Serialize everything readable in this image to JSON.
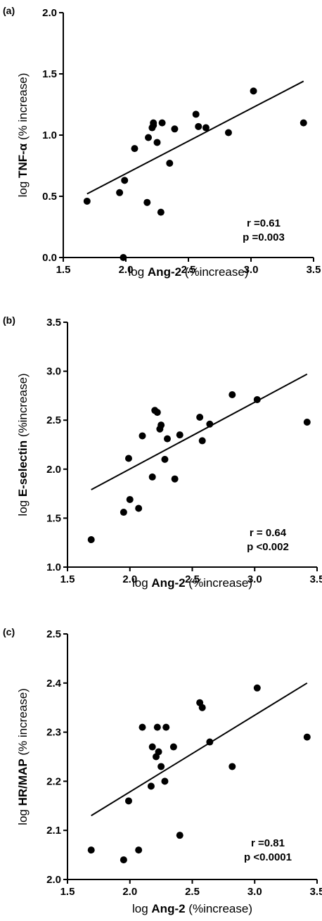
{
  "chart_data": [
    {
      "type": "scatter",
      "panel_label": "(a)",
      "xlabel": {
        "prefix": "log ",
        "bold": "Ang-2",
        "suffix": " (%increase)"
      },
      "ylabel": {
        "prefix": "log ",
        "bold": "TNF-α",
        "suffix": " (% increase)"
      },
      "xlim": [
        1.5,
        3.5
      ],
      "ylim": [
        0.0,
        2.0
      ],
      "xticks": [
        "1.5",
        "2.0",
        "2.5",
        "3.0",
        "3.5"
      ],
      "yticks": [
        "0.0",
        "0.5",
        "1.0",
        "1.5",
        "2.0"
      ],
      "points": [
        [
          1.69,
          0.46
        ],
        [
          1.95,
          0.53
        ],
        [
          1.98,
          0.0
        ],
        [
          1.99,
          0.63
        ],
        [
          2.07,
          0.89
        ],
        [
          2.17,
          0.45
        ],
        [
          2.18,
          0.98
        ],
        [
          2.21,
          1.06
        ],
        [
          2.22,
          1.08
        ],
        [
          2.22,
          1.1
        ],
        [
          2.25,
          0.94
        ],
        [
          2.28,
          0.37
        ],
        [
          2.29,
          1.1
        ],
        [
          2.35,
          0.77
        ],
        [
          2.39,
          1.05
        ],
        [
          2.56,
          1.17
        ],
        [
          2.58,
          1.07
        ],
        [
          2.64,
          1.06
        ],
        [
          2.82,
          1.02
        ],
        [
          3.02,
          1.36
        ],
        [
          3.42,
          1.1
        ]
      ],
      "fit_line": [
        [
          1.69,
          0.52
        ],
        [
          3.42,
          1.44
        ]
      ],
      "stats": [
        "r =0.61",
        "p =0.003"
      ]
    },
    {
      "type": "scatter",
      "panel_label": "(b)",
      "xlabel": {
        "prefix": "log ",
        "bold": "Ang-2",
        "suffix": " (%increase)"
      },
      "ylabel": {
        "prefix": "log ",
        "bold": "E-selectin",
        "suffix": " (%increase)"
      },
      "xlim": [
        1.5,
        3.5
      ],
      "ylim": [
        1.0,
        3.5
      ],
      "xticks": [
        "1.5",
        "2.0",
        "2.5",
        "3.0",
        "3.5"
      ],
      "yticks": [
        "1.0",
        "1.5",
        "2.0",
        "2.5",
        "3.0",
        "3.5"
      ],
      "points": [
        [
          1.69,
          1.28
        ],
        [
          1.95,
          1.56
        ],
        [
          1.99,
          2.11
        ],
        [
          2.0,
          1.69
        ],
        [
          2.07,
          1.6
        ],
        [
          2.1,
          2.34
        ],
        [
          2.18,
          1.92
        ],
        [
          2.2,
          2.6
        ],
        [
          2.22,
          2.58
        ],
        [
          2.24,
          2.41
        ],
        [
          2.25,
          2.45
        ],
        [
          2.28,
          2.1
        ],
        [
          2.3,
          2.31
        ],
        [
          2.36,
          1.9
        ],
        [
          2.4,
          2.35
        ],
        [
          2.56,
          2.53
        ],
        [
          2.58,
          2.29
        ],
        [
          2.64,
          2.46
        ],
        [
          2.82,
          2.76
        ],
        [
          3.02,
          2.71
        ],
        [
          3.42,
          2.48
        ]
      ],
      "fit_line": [
        [
          1.69,
          1.79
        ],
        [
          3.42,
          2.97
        ]
      ],
      "stats": [
        "r = 0.64",
        "p <0.002"
      ]
    },
    {
      "type": "scatter",
      "panel_label": "(c)",
      "xlabel": {
        "prefix": "log ",
        "bold": "Ang-2",
        "suffix": " (%increase)"
      },
      "ylabel": {
        "prefix": "log ",
        "bold": "HR/MAP",
        "suffix": " (% increase)"
      },
      "xlim": [
        1.5,
        3.5
      ],
      "ylim": [
        2.0,
        2.5
      ],
      "xticks": [
        "1.5",
        "2.0",
        "2.5",
        "3.0",
        "3.5"
      ],
      "yticks": [
        "2.0",
        "2.1",
        "2.2",
        "2.3",
        "2.4",
        "2.5"
      ],
      "points": [
        [
          1.69,
          2.06
        ],
        [
          1.95,
          2.04
        ],
        [
          1.99,
          2.16
        ],
        [
          2.07,
          2.06
        ],
        [
          2.1,
          2.31
        ],
        [
          2.17,
          2.19
        ],
        [
          2.18,
          2.27
        ],
        [
          2.21,
          2.25
        ],
        [
          2.22,
          2.31
        ],
        [
          2.23,
          2.26
        ],
        [
          2.25,
          2.23
        ],
        [
          2.28,
          2.2
        ],
        [
          2.29,
          2.31
        ],
        [
          2.35,
          2.27
        ],
        [
          2.4,
          2.09
        ],
        [
          2.56,
          2.36
        ],
        [
          2.58,
          2.35
        ],
        [
          2.64,
          2.28
        ],
        [
          2.82,
          2.23
        ],
        [
          3.02,
          2.39
        ],
        [
          3.42,
          2.29
        ]
      ],
      "fit_line": [
        [
          1.69,
          2.13
        ],
        [
          3.42,
          2.4
        ]
      ],
      "stats": [
        "r =0.81",
        "p <0.0001"
      ]
    }
  ]
}
